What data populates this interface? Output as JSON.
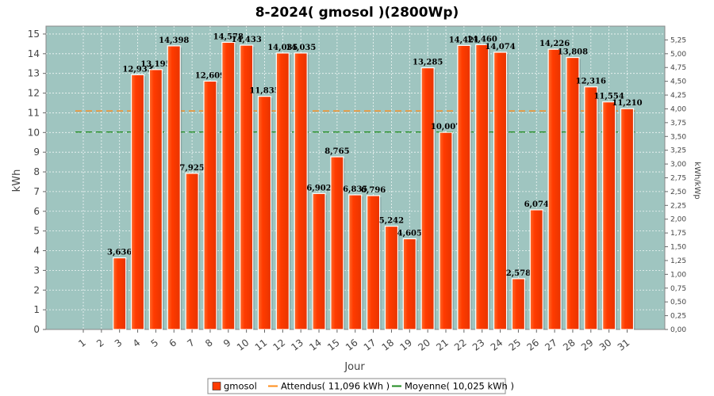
{
  "chart_data": {
    "type": "bar",
    "title": "8-2024( gmosol )(2800Wp)",
    "xlabel": "Jour",
    "ylabel": "kWh",
    "ylabel_right": "kWh/kWp",
    "ylim": [
      0,
      15.4
    ],
    "yticks": [
      0,
      1,
      2,
      3,
      4,
      5,
      6,
      7,
      8,
      9,
      10,
      11,
      12,
      13,
      14,
      15
    ],
    "yticks_right": [
      "0,00",
      "0,25",
      "0,50",
      "0,75",
      "1,00",
      "1,25",
      "1,50",
      "1,75",
      "2,00",
      "2,25",
      "2,50",
      "2,75",
      "3,00",
      "3,25",
      "3,50",
      "3,75",
      "4,00",
      "4,25",
      "4,50",
      "4,75",
      "5,00",
      "5,25"
    ],
    "categories": [
      "1",
      "2",
      "3",
      "4",
      "5",
      "6",
      "7",
      "8",
      "9",
      "10",
      "11",
      "12",
      "13",
      "14",
      "15",
      "16",
      "17",
      "18",
      "19",
      "20",
      "21",
      "22",
      "23",
      "24",
      "25",
      "26",
      "27",
      "28",
      "29",
      "30",
      "31"
    ],
    "series": [
      {
        "name": "gmosol",
        "color": "#ff3b00",
        "values": [
          0,
          0,
          3.636,
          12.933,
          13.195,
          14.398,
          7.925,
          12.609,
          14.578,
          14.433,
          11.835,
          14.035,
          14.035,
          6.902,
          8.765,
          6.835,
          6.796,
          5.242,
          4.605,
          13.285,
          10.007,
          14.421,
          14.46,
          14.074,
          2.578,
          6.074,
          14.226,
          13.808,
          12.316,
          11.554,
          11.21
        ],
        "labels": [
          "",
          "",
          "3,636",
          "12,933",
          "13,195",
          "14,398",
          "7,925",
          "12,609",
          "14,578",
          "14,433",
          "11,835",
          "14,035",
          "14,035",
          "6,902",
          "8,765",
          "6,835",
          "6,796",
          "5,242",
          "4,605",
          "13,285",
          "10,007",
          "14,421",
          "14,460",
          "14,074",
          "2,578",
          "6,074",
          "14,226",
          "13,808",
          "12,316",
          "11,554",
          "11,210"
        ]
      }
    ],
    "reference_lines": [
      {
        "name": "Attendus",
        "value": 11.096,
        "color": "#ff8c1a"
      },
      {
        "name": "Moyenne",
        "value": 10.025,
        "color": "#1f8a1f"
      }
    ],
    "legend": {
      "position": "bottom",
      "entries": [
        "gmosol",
        "Attendus( 11,096 kWh )",
        "Moyenne( 10,025 kWh )"
      ]
    },
    "plot_background": "#9fc5c0",
    "grid": true
  }
}
